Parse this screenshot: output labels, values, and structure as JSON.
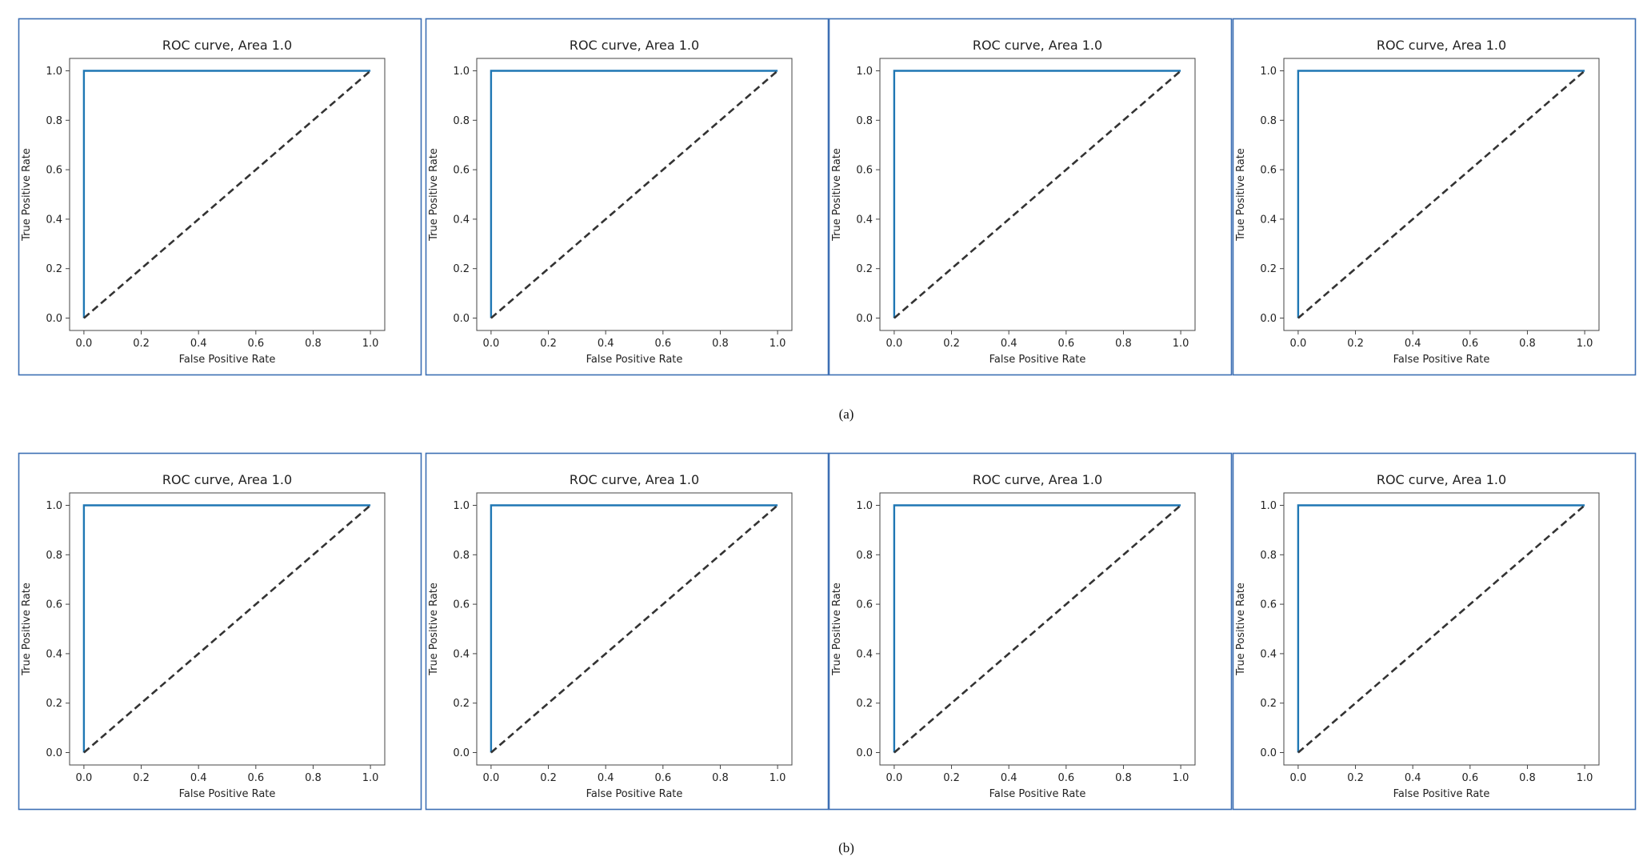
{
  "captions": [
    "(a)",
    "(b)"
  ],
  "colors": {
    "frame": "#3d6fb4",
    "roc_line": "#1f77b4",
    "chance_line": "#333333",
    "axes": "#444444"
  },
  "chart_data": [
    {
      "group": "(a)",
      "type": "line",
      "title": "ROC curve, Area 1.0",
      "xlabel": "False Positive Rate",
      "ylabel": "True Positive Rate",
      "xlim": [
        0,
        1
      ],
      "ylim": [
        0,
        1
      ],
      "xticks": [
        "0.0",
        "0.2",
        "0.4",
        "0.6",
        "0.8",
        "1.0"
      ],
      "yticks": [
        "0.0",
        "0.2",
        "0.4",
        "0.6",
        "0.8",
        "1.0"
      ],
      "grid": false,
      "series": [
        {
          "x": [
            0,
            0,
            1
          ],
          "y": [
            0,
            1,
            1
          ],
          "style": "solid"
        },
        {
          "x": [
            0,
            1
          ],
          "y": [
            0,
            1
          ],
          "style": "dashed"
        }
      ]
    },
    {
      "group": "(a)",
      "type": "line",
      "title": "ROC curve, Area 1.0",
      "xlabel": "False Positive Rate",
      "ylabel": "True Positive Rate",
      "xlim": [
        0,
        1
      ],
      "ylim": [
        0,
        1
      ],
      "xticks": [
        "0.0",
        "0.2",
        "0.4",
        "0.6",
        "0.8",
        "1.0"
      ],
      "yticks": [
        "0.0",
        "0.2",
        "0.4",
        "0.6",
        "0.8",
        "1.0"
      ],
      "grid": false,
      "series": [
        {
          "x": [
            0,
            0,
            1
          ],
          "y": [
            0,
            1,
            1
          ],
          "style": "solid"
        },
        {
          "x": [
            0,
            1
          ],
          "y": [
            0,
            1
          ],
          "style": "dashed"
        }
      ]
    },
    {
      "group": "(a)",
      "type": "line",
      "title": "ROC curve, Area 1.0",
      "xlabel": "False Positive Rate",
      "ylabel": "True Positive Rate",
      "xlim": [
        0,
        1
      ],
      "ylim": [
        0,
        1
      ],
      "xticks": [
        "0.0",
        "0.2",
        "0.4",
        "0.6",
        "0.8",
        "1.0"
      ],
      "yticks": [
        "0.0",
        "0.2",
        "0.4",
        "0.6",
        "0.8",
        "1.0"
      ],
      "grid": false,
      "series": [
        {
          "x": [
            0,
            0,
            1
          ],
          "y": [
            0,
            1,
            1
          ],
          "style": "solid"
        },
        {
          "x": [
            0,
            1
          ],
          "y": [
            0,
            1
          ],
          "style": "dashed"
        }
      ]
    },
    {
      "group": "(a)",
      "type": "line",
      "title": "ROC curve, Area 1.0",
      "xlabel": "False Positive Rate",
      "ylabel": "True Positive Rate",
      "xlim": [
        0,
        1
      ],
      "ylim": [
        0,
        1
      ],
      "xticks": [
        "0.0",
        "0.2",
        "0.4",
        "0.6",
        "0.8",
        "1.0"
      ],
      "yticks": [
        "0.0",
        "0.2",
        "0.4",
        "0.6",
        "0.8",
        "1.0"
      ],
      "grid": false,
      "series": [
        {
          "x": [
            0,
            0,
            1
          ],
          "y": [
            0,
            1,
            1
          ],
          "style": "solid"
        },
        {
          "x": [
            0,
            1
          ],
          "y": [
            0,
            1
          ],
          "style": "dashed"
        }
      ]
    },
    {
      "group": "(b)",
      "type": "line",
      "title": "ROC curve, Area 1.0",
      "xlabel": "False Positive Rate",
      "ylabel": "True Positive Rate",
      "xlim": [
        0,
        1
      ],
      "ylim": [
        0,
        1
      ],
      "xticks": [
        "0.0",
        "0.2",
        "0.4",
        "0.6",
        "0.8",
        "1.0"
      ],
      "yticks": [
        "0.0",
        "0.2",
        "0.4",
        "0.6",
        "0.8",
        "1.0"
      ],
      "grid": false,
      "series": [
        {
          "x": [
            0,
            0,
            1
          ],
          "y": [
            0,
            1,
            1
          ],
          "style": "solid"
        },
        {
          "x": [
            0,
            1
          ],
          "y": [
            0,
            1
          ],
          "style": "dashed"
        }
      ]
    },
    {
      "group": "(b)",
      "type": "line",
      "title": "ROC curve, Area 1.0",
      "xlabel": "False Positive Rate",
      "ylabel": "True Positive Rate",
      "xlim": [
        0,
        1
      ],
      "ylim": [
        0,
        1
      ],
      "xticks": [
        "0.0",
        "0.2",
        "0.4",
        "0.6",
        "0.8",
        "1.0"
      ],
      "yticks": [
        "0.0",
        "0.2",
        "0.4",
        "0.6",
        "0.8",
        "1.0"
      ],
      "grid": false,
      "series": [
        {
          "x": [
            0,
            0,
            1
          ],
          "y": [
            0,
            1,
            1
          ],
          "style": "solid"
        },
        {
          "x": [
            0,
            1
          ],
          "y": [
            0,
            1
          ],
          "style": "dashed"
        }
      ]
    },
    {
      "group": "(b)",
      "type": "line",
      "title": "ROC curve, Area 1.0",
      "xlabel": "False Positive Rate",
      "ylabel": "True Positive Rate",
      "xlim": [
        0,
        1
      ],
      "ylim": [
        0,
        1
      ],
      "xticks": [
        "0.0",
        "0.2",
        "0.4",
        "0.6",
        "0.8",
        "1.0"
      ],
      "yticks": [
        "0.0",
        "0.2",
        "0.4",
        "0.6",
        "0.8",
        "1.0"
      ],
      "grid": false,
      "series": [
        {
          "x": [
            0,
            0,
            1
          ],
          "y": [
            0,
            1,
            1
          ],
          "style": "solid"
        },
        {
          "x": [
            0,
            1
          ],
          "y": [
            0,
            1
          ],
          "style": "dashed"
        }
      ]
    },
    {
      "group": "(b)",
      "type": "line",
      "title": "ROC curve, Area 1.0",
      "xlabel": "False Positive Rate",
      "ylabel": "True Positive Rate",
      "xlim": [
        0,
        1
      ],
      "ylim": [
        0,
        1
      ],
      "xticks": [
        "0.0",
        "0.2",
        "0.4",
        "0.6",
        "0.8",
        "1.0"
      ],
      "yticks": [
        "0.0",
        "0.2",
        "0.4",
        "0.6",
        "0.8",
        "1.0"
      ],
      "grid": false,
      "series": [
        {
          "x": [
            0,
            0,
            1
          ],
          "y": [
            0,
            1,
            1
          ],
          "style": "solid"
        },
        {
          "x": [
            0,
            1
          ],
          "y": [
            0,
            1
          ],
          "style": "dashed"
        }
      ]
    }
  ]
}
